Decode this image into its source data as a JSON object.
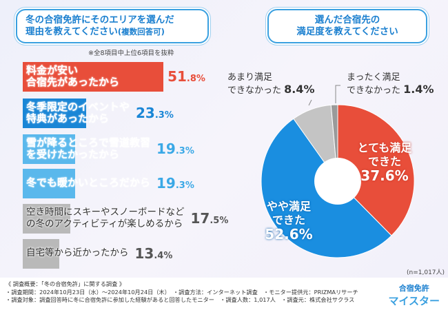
{
  "left": {
    "title_line1": "冬の合宿免許にそのエリアを選んだ",
    "title_line2": "理由を教えてください",
    "title_suffix": "(複数回答可)",
    "note": "※全8項目中上位6項目を抜粋"
  },
  "right": {
    "title_line1": "選んだ合宿先の",
    "title_line2": "満足度を教えてください",
    "n": "(n=1,017人)"
  },
  "chart_data": [
    {
      "type": "bar",
      "orientation": "horizontal",
      "unit": "%",
      "categories": [
        "料金が安い合宿先があったから",
        "冬季限定のイベントや特典があったから",
        "雪が降るところで雪道教習を受けたかったから",
        "冬でも暖かいところだから",
        "空き時間にスキーやスノーボードなどの冬のアクティビティが楽しめるから",
        "自宅等から近かったから"
      ],
      "label_lines": [
        [
          "料金が安い",
          "合宿先があったから"
        ],
        [
          "冬季限定のイベントや",
          "特典があったから"
        ],
        [
          "雪が降るところで雪道教習",
          "を受けたかったから"
        ],
        [
          "冬でも暖かいところだから"
        ],
        [
          "空き時間にスキーやスノーボードなど",
          "の冬のアクティビティが楽しめるから"
        ],
        [
          "自宅等から近かったから"
        ]
      ],
      "values": [
        51.8,
        23.3,
        19.3,
        19.3,
        17.5,
        13.4
      ],
      "value_labels": [
        [
          "51",
          ".8%"
        ],
        [
          "23",
          ".3%"
        ],
        [
          "19",
          ".3%"
        ],
        [
          "19",
          ".3%"
        ],
        [
          "17",
          ".5%"
        ],
        [
          "13",
          ".4%"
        ]
      ],
      "colors": [
        "#e84e3a",
        "#1a86d6",
        "#5ab8ec",
        "#5ab8ec",
        "#b9b9b9",
        "#b9b9b9"
      ],
      "value_colors": [
        "#e84e3a",
        "#1a86d6",
        "#3aa8e6",
        "#3aa8e6",
        "#555555",
        "#555555"
      ]
    },
    {
      "type": "pie",
      "donut": true,
      "categories": [
        "とても満足できた",
        "やや満足できた",
        "あまり満足できなかった",
        "まったく満足できなかった"
      ],
      "values": [
        37.6,
        52.6,
        8.4,
        1.4
      ],
      "colors": [
        "#e84e3a",
        "#1a8ee0",
        "#c4c4c4",
        "#9a9a9a"
      ],
      "labels": [
        {
          "l1": "とても満足",
          "l2": "できた",
          "v": "37.6%"
        },
        {
          "l1": "やや満足",
          "l2": "できた",
          "v": "52.6%"
        },
        {
          "l1": "あまり満足",
          "l2": "できなかった",
          "v": "8.4%"
        },
        {
          "l1": "まったく満足",
          "l2": "できなかった",
          "v": "1.4%"
        }
      ]
    }
  ],
  "footer": {
    "line1": "《 調査概要：「冬の合宿免許」に関する調査 》",
    "line2": "・調査期間：2024年10月23日（水）～2024年10月24日（木）　・調査方法：インターネット調査　・モニター提供元：PRIZMAリサーチ",
    "line3": "・調査対象：調査回答時に冬に合宿免許に参加した経験があると回答したモニター　・調査人数：1,017人　・調査元：株式会社サクラス"
  },
  "logo": {
    "line1": "合宿免許",
    "line2": "マイスター"
  }
}
